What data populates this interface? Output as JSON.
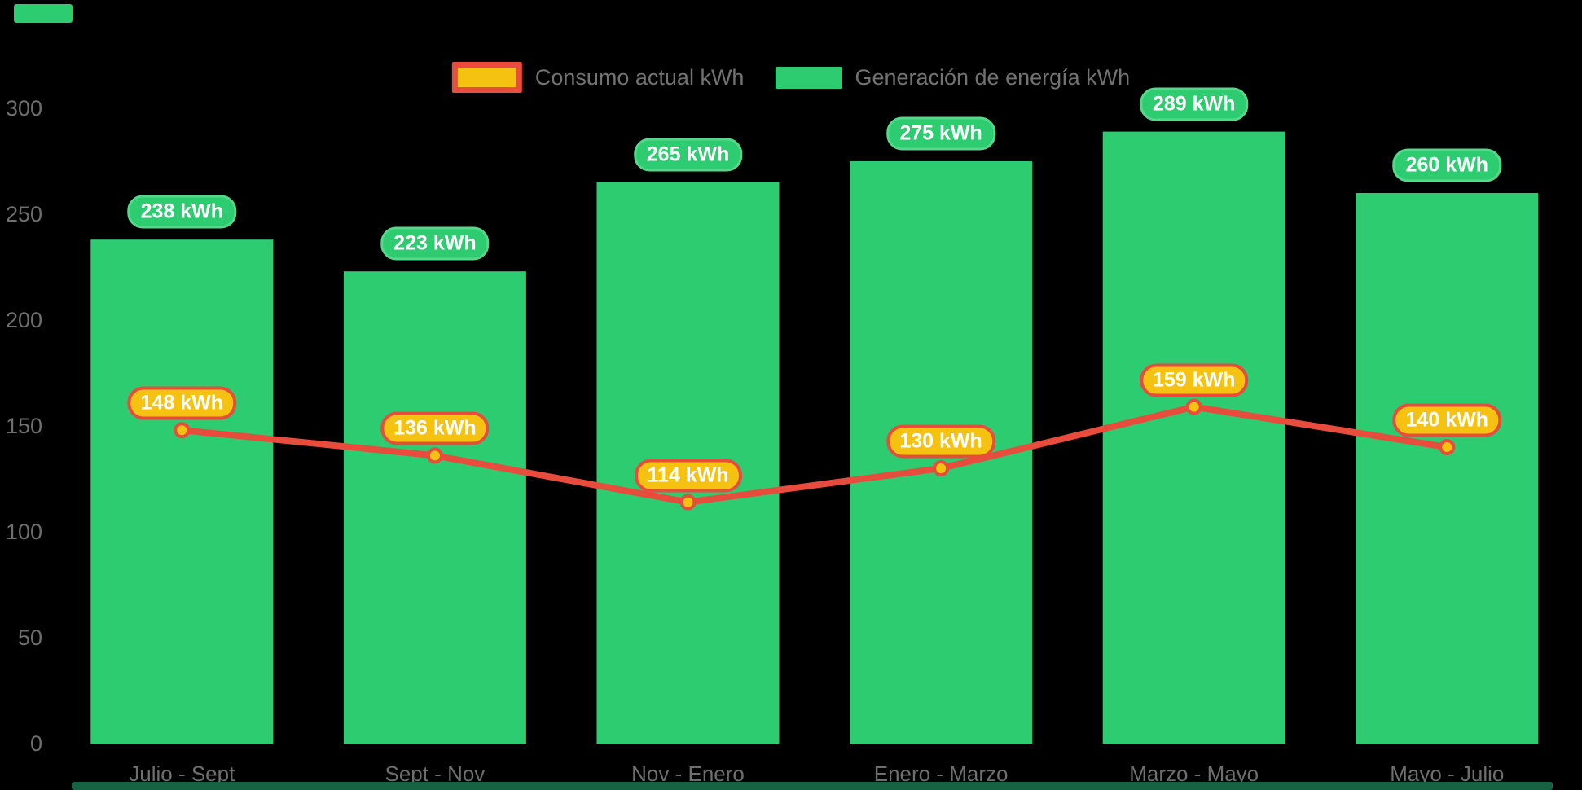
{
  "app": {
    "background": "#000000"
  },
  "legend": {
    "items": [
      {
        "label": "Consumo actual kWh",
        "series": "consumo"
      },
      {
        "label": "Generación de energía kWh",
        "series": "generacion"
      }
    ]
  },
  "chart_data": {
    "type": "bar",
    "categories": [
      "Julio - Sept",
      "Sept - Nov",
      "Nov - Enero",
      "Enero - Marzo",
      "Marzo - Mayo",
      "Mayo - Julio"
    ],
    "series": [
      {
        "id": "generacion",
        "name": "Generación de energía kWh",
        "type": "bar",
        "color": "#2ecc71",
        "label_style": "green-pill",
        "values": [
          238,
          223,
          265,
          275,
          289,
          260
        ],
        "data_labels": [
          "238 kWh",
          "223 kWh",
          "265 kWh",
          "275 kWh",
          "289 kWh",
          "260 kWh"
        ]
      },
      {
        "id": "consumo",
        "name": "Consumo actual kWh",
        "type": "line",
        "color": "#e74c3c",
        "point_fill": "#f5c211",
        "point_border": "#e74c3c",
        "label_style": "orange-pill",
        "values": [
          148,
          136,
          114,
          130,
          159,
          140
        ],
        "data_labels": [
          "148 kWh",
          "136 kWh",
          "114 kWh",
          "130 kWh",
          "159 kWh",
          "140 kWh"
        ]
      }
    ],
    "unit": "kWh",
    "ylim": [
      0,
      300
    ],
    "yticks": [
      0,
      50,
      100,
      150,
      200,
      250,
      300
    ],
    "xlabel": "",
    "ylabel": "",
    "grid": false,
    "legend_position": "top-center",
    "axis_text_color": "#6e6e6e",
    "background": "#000000"
  }
}
